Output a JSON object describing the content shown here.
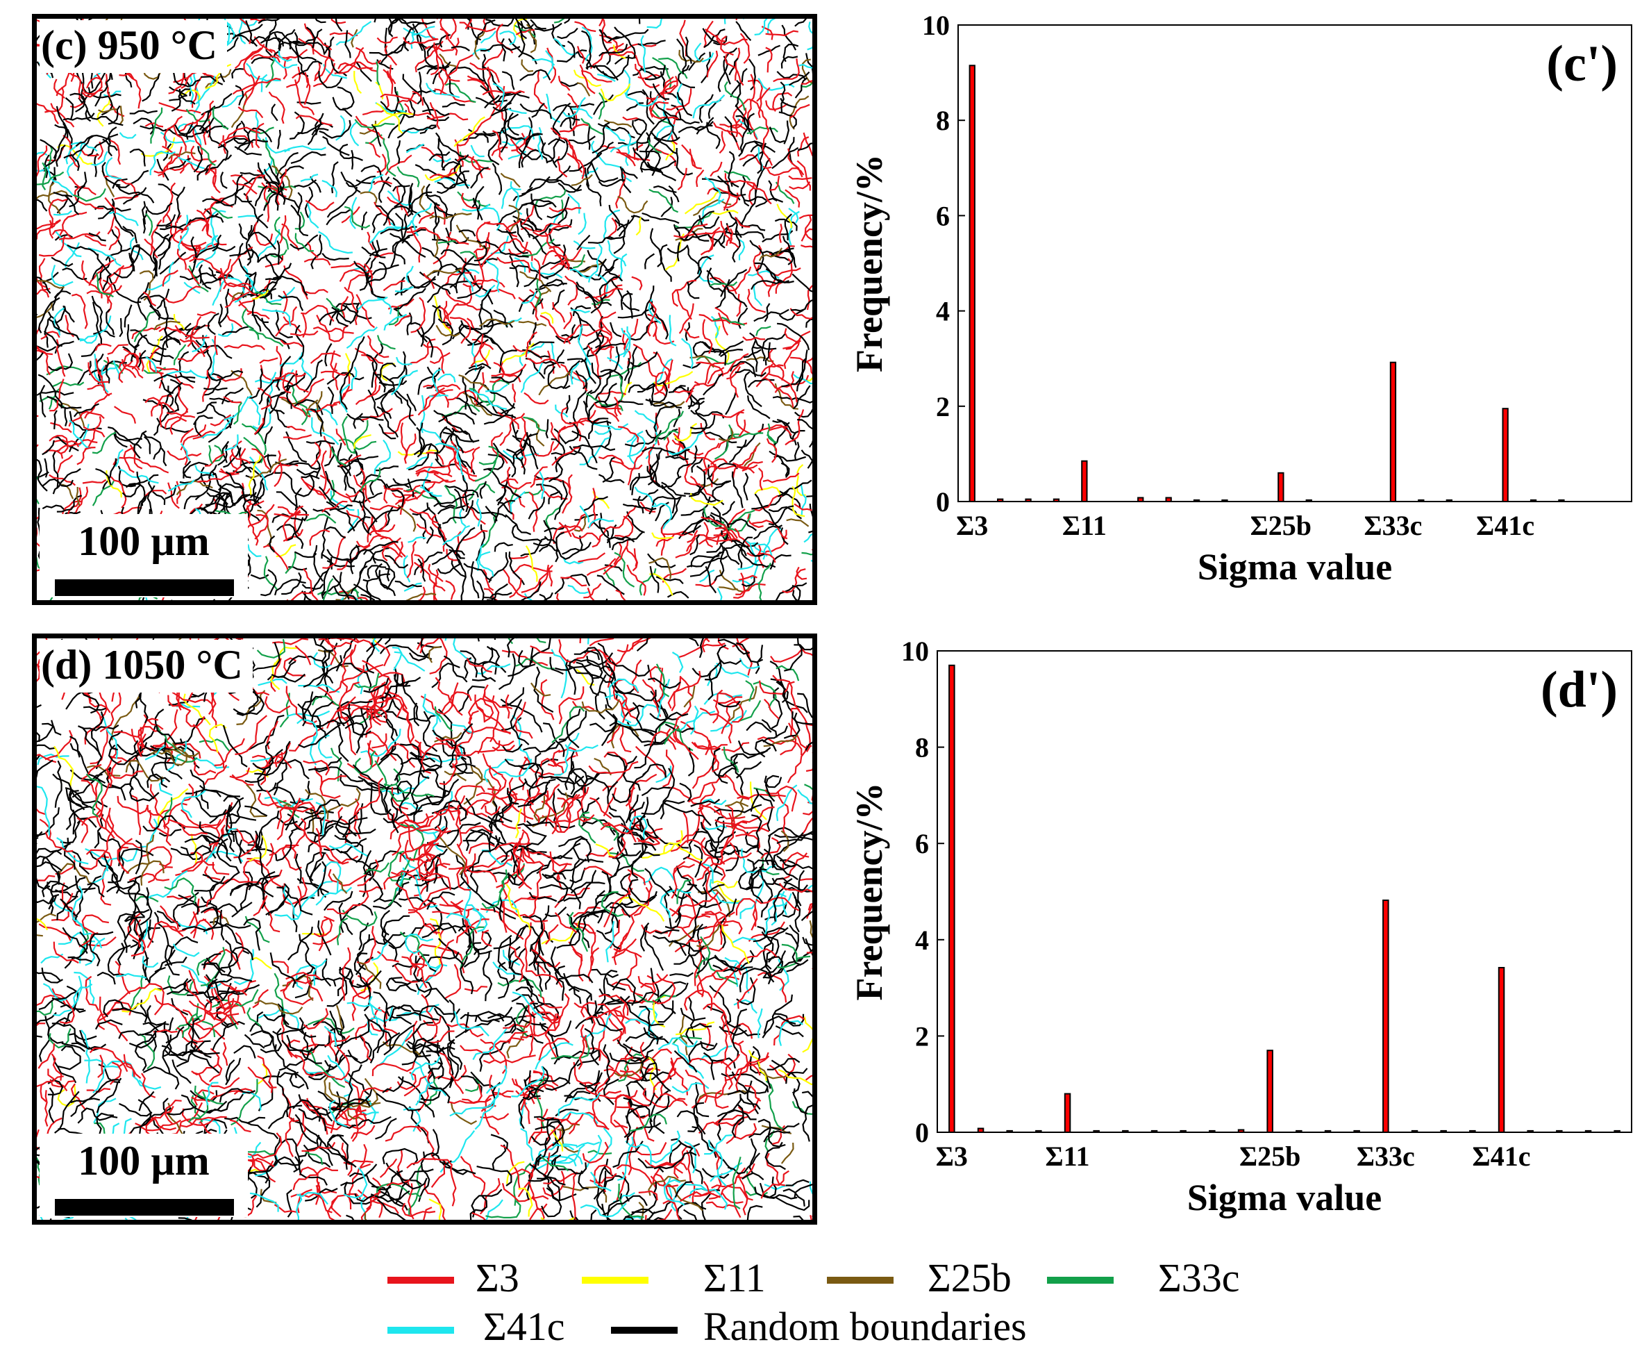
{
  "panels": {
    "c": {
      "label": "(c) 950 °C",
      "scale_label": "100 µm"
    },
    "d": {
      "label": "(d) 1050 °C",
      "scale_label": "100 µm"
    }
  },
  "colors": {
    "sigma3": "#e8141c",
    "sigma11": "#ffff00",
    "sigma25b": "#7a5a12",
    "sigma33c": "#12a04a",
    "sigma41c": "#1ee6ee",
    "random": "#000000"
  },
  "legend": [
    {
      "key": "sigma3",
      "label": "Σ3"
    },
    {
      "key": "sigma11",
      "label": "Σ11"
    },
    {
      "key": "sigma25b",
      "label": "Σ25b"
    },
    {
      "key": "sigma33c",
      "label": "Σ33c"
    },
    {
      "key": "sigma41c",
      "label": "Σ41c"
    },
    {
      "key": "random",
      "label": "Random boundaries"
    }
  ],
  "chart_data": [
    {
      "type": "bar",
      "panel_label": "(c')",
      "xlabel": "Sigma value",
      "ylabel": "Frequency/%",
      "ylim": [
        0,
        10
      ],
      "yticks": [
        0,
        2,
        4,
        6,
        8,
        10
      ],
      "xlim": [
        2,
        50
      ],
      "tick_labels": [
        {
          "x": 3,
          "label": "Σ3"
        },
        {
          "x": 11,
          "label": "Σ11"
        },
        {
          "x": 25,
          "label": "Σ25b"
        },
        {
          "x": 33,
          "label": "Σ33c"
        },
        {
          "x": 41,
          "label": "Σ41c"
        }
      ],
      "x": [
        3,
        5,
        7,
        9,
        11,
        15,
        17,
        19,
        21,
        25,
        27,
        33,
        35,
        37,
        41,
        43,
        45
      ],
      "values": [
        9.15,
        0.05,
        0.05,
        0.05,
        0.85,
        0.08,
        0.08,
        0.03,
        0.02,
        0.6,
        0.03,
        2.92,
        0.03,
        0.03,
        1.95,
        0.03,
        0.03
      ]
    },
    {
      "type": "bar",
      "panel_label": "(d')",
      "xlabel": "Sigma value",
      "ylabel": "Frequency/%",
      "ylim": [
        0,
        10
      ],
      "yticks": [
        0,
        2,
        4,
        6,
        8,
        10
      ],
      "xlim": [
        2,
        50
      ],
      "tick_labels": [
        {
          "x": 3,
          "label": "Σ3"
        },
        {
          "x": 11,
          "label": "Σ11"
        },
        {
          "x": 25,
          "label": "Σ25b"
        },
        {
          "x": 33,
          "label": "Σ33c"
        },
        {
          "x": 41,
          "label": "Σ41c"
        }
      ],
      "x": [
        3,
        5,
        7,
        9,
        11,
        13,
        15,
        17,
        19,
        21,
        23,
        25,
        27,
        29,
        31,
        33,
        35,
        37,
        39,
        41,
        43,
        45,
        47,
        49
      ],
      "values": [
        9.7,
        0.08,
        0.03,
        0.03,
        0.8,
        0.03,
        0.03,
        0.03,
        0.03,
        0.03,
        0.05,
        1.7,
        0.03,
        0.03,
        0.03,
        4.82,
        0.03,
        0.03,
        0.03,
        3.42,
        0.03,
        0.03,
        0.03,
        0.03
      ]
    }
  ]
}
